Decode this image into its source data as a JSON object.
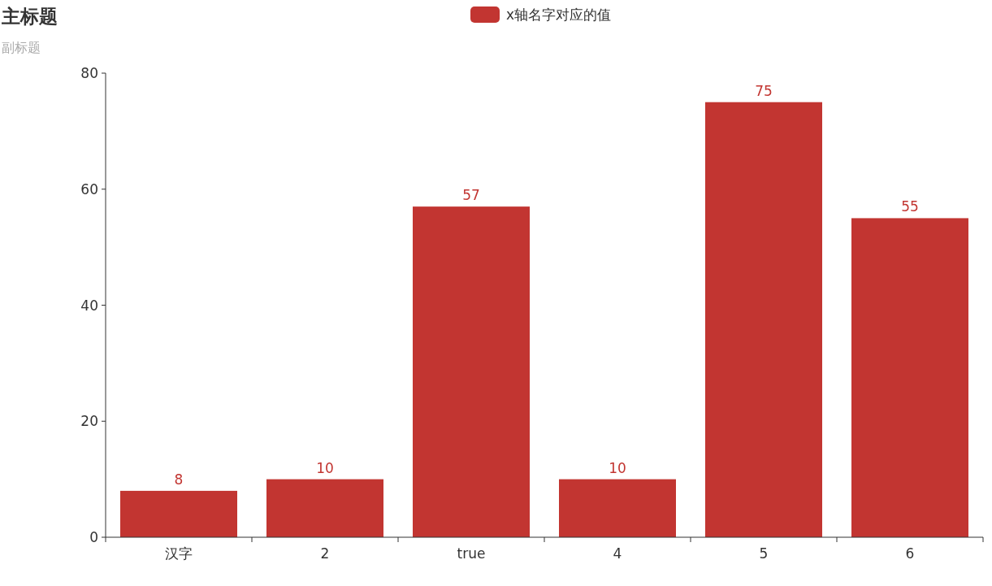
{
  "chart_data": {
    "type": "bar",
    "title": "主标题",
    "subtitle": "副标题",
    "categories": [
      "汉字",
      "2",
      "true",
      "4",
      "5",
      "6"
    ],
    "series": [
      {
        "name": "x轴名字对应的值",
        "color": "#c23531",
        "values": [
          8,
          10,
          57,
          10,
          75,
          55
        ]
      }
    ],
    "ylim": [
      0,
      80
    ],
    "yticks": [
      0,
      20,
      40,
      60,
      80
    ],
    "legend": "top",
    "data_labels": true
  }
}
